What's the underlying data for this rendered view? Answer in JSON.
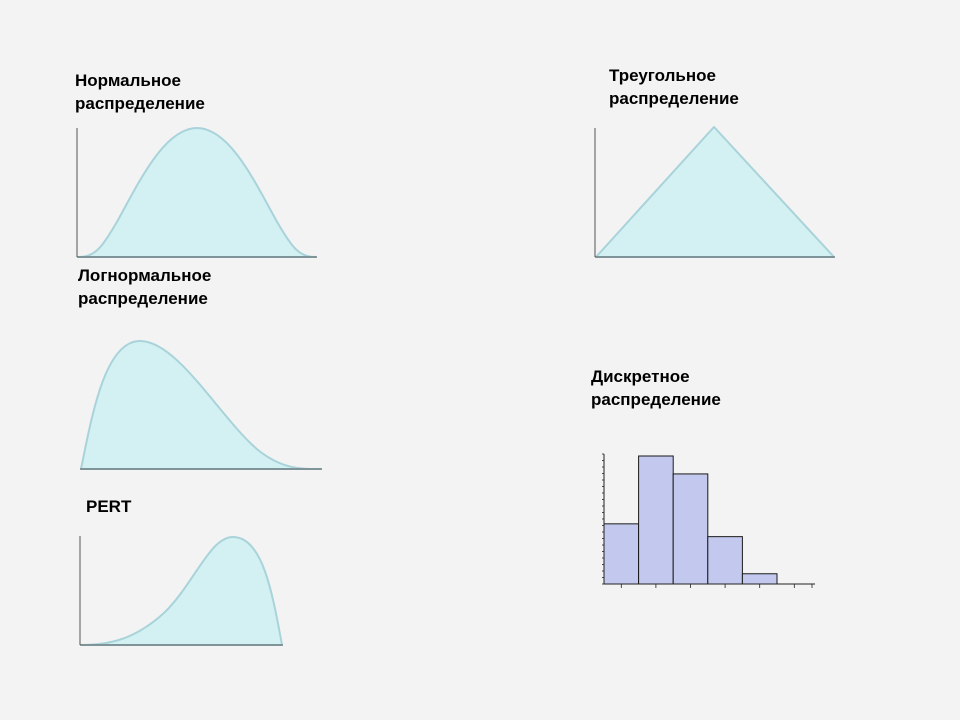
{
  "labels": {
    "normal": [
      "Нормальное",
      "распределение"
    ],
    "triangular": [
      "Треугольное",
      "распределение"
    ],
    "lognormal": [
      "Логнормальное",
      "распределение"
    ],
    "discrete": [
      "Дискретное",
      "распределение"
    ],
    "pert": [
      "PERT"
    ]
  },
  "colors": {
    "background": "#f3f3f3",
    "curve_fill": "#d3f1f2",
    "curve_stroke": "#a9d3da",
    "axis": "#555555",
    "bar_fill": "#c3c9ee",
    "bar_stroke": "#1a1a1a"
  },
  "chart_data": {
    "type": "bar",
    "values": [
      0.47,
      1.0,
      0.86,
      0.37,
      0.08,
      0.0
    ]
  }
}
